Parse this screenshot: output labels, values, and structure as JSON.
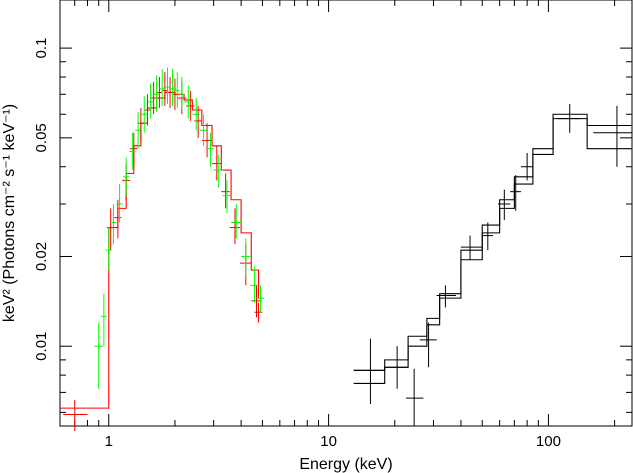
{
  "chart_data": {
    "type": "scatter",
    "title": "",
    "xlabel": "Energy (keV)",
    "ylabel": "keV² (Photons cm⁻² s⁻¹ keV⁻¹)",
    "xscale": "log",
    "yscale": "log",
    "xlim": [
      0.6,
      240
    ],
    "ylim": [
      0.0054,
      0.145
    ],
    "grid": false,
    "legend": "none",
    "x_ticks": [
      {
        "value": 1,
        "label": "1"
      },
      {
        "value": 10,
        "label": "10"
      },
      {
        "value": 100,
        "label": "100"
      }
    ],
    "y_ticks": [
      {
        "value": 0.01,
        "label": "0.01"
      },
      {
        "value": 0.02,
        "label": "0.02"
      },
      {
        "value": 0.05,
        "label": "0.05"
      },
      {
        "value": 0.1,
        "label": "0.1"
      }
    ],
    "series": [
      {
        "color": "#ff0000",
        "style": "errorbar",
        "points": [
          {
            "x": 0.7,
            "y": 0.0059,
            "xerr": [
              0.62,
              0.8
            ],
            "yerr": [
              0.0052,
              0.0066
            ]
          },
          {
            "x": 1.02,
            "y": 0.025,
            "xerr": [
              0.98,
              1.06
            ],
            "yerr": [
              0.021,
              0.029
            ]
          },
          {
            "x": 1.1,
            "y": 0.027,
            "xerr": [
              1.06,
              1.14
            ],
            "yerr": [
              0.023,
              0.031
            ]
          },
          {
            "x": 1.2,
            "y": 0.036,
            "xerr": [
              1.15,
              1.25
            ],
            "yerr": [
              0.031,
              0.041
            ]
          },
          {
            "x": 1.3,
            "y": 0.046,
            "xerr": [
              1.25,
              1.35
            ],
            "yerr": [
              0.04,
              0.052
            ]
          },
          {
            "x": 1.4,
            "y": 0.056,
            "xerr": [
              1.35,
              1.45
            ],
            "yerr": [
              0.049,
              0.063
            ]
          },
          {
            "x": 1.5,
            "y": 0.062,
            "xerr": [
              1.45,
              1.55
            ],
            "yerr": [
              0.055,
              0.07
            ]
          },
          {
            "x": 1.6,
            "y": 0.068,
            "xerr": [
              1.55,
              1.65
            ],
            "yerr": [
              0.06,
              0.077
            ]
          },
          {
            "x": 1.7,
            "y": 0.071,
            "xerr": [
              1.65,
              1.75
            ],
            "yerr": [
              0.063,
              0.08
            ]
          },
          {
            "x": 1.8,
            "y": 0.072,
            "xerr": [
              1.75,
              1.85
            ],
            "yerr": [
              0.064,
              0.083
            ]
          },
          {
            "x": 1.9,
            "y": 0.071,
            "xerr": [
              1.85,
              1.95
            ],
            "yerr": [
              0.063,
              0.08
            ]
          },
          {
            "x": 2.0,
            "y": 0.07,
            "xerr": [
              1.95,
              2.05
            ],
            "yerr": [
              0.062,
              0.079
            ]
          },
          {
            "x": 2.15,
            "y": 0.068,
            "xerr": [
              2.05,
              2.25
            ],
            "yerr": [
              0.06,
              0.077
            ]
          },
          {
            "x": 2.35,
            "y": 0.064,
            "xerr": [
              2.25,
              2.45
            ],
            "yerr": [
              0.057,
              0.072
            ]
          },
          {
            "x": 2.55,
            "y": 0.057,
            "xerr": [
              2.45,
              2.65
            ],
            "yerr": [
              0.05,
              0.064
            ]
          },
          {
            "x": 2.8,
            "y": 0.049,
            "xerr": [
              2.65,
              2.95
            ],
            "yerr": [
              0.043,
              0.056
            ]
          },
          {
            "x": 3.1,
            "y": 0.041,
            "xerr": [
              2.95,
              3.25
            ],
            "yerr": [
              0.036,
              0.047
            ]
          },
          {
            "x": 3.4,
            "y": 0.033,
            "xerr": [
              3.25,
              3.55
            ],
            "yerr": [
              0.029,
              0.038
            ]
          },
          {
            "x": 3.75,
            "y": 0.025,
            "xerr": [
              3.55,
              3.95
            ],
            "yerr": [
              0.022,
              0.029
            ]
          },
          {
            "x": 4.2,
            "y": 0.019,
            "xerr": [
              3.95,
              4.45
            ],
            "yerr": [
              0.016,
              0.022
            ]
          },
          {
            "x": 4.7,
            "y": 0.0142,
            "xerr": [
              4.45,
              4.95
            ],
            "yerr": [
              0.0125,
              0.016
            ]
          },
          {
            "x": 4.8,
            "y": 0.013,
            "xerr": [
              4.6,
              5.0
            ],
            "yerr": [
              0.012,
              0.014
            ]
          }
        ]
      },
      {
        "color": "#ff0000",
        "style": "step",
        "points": [
          {
            "x": 0.6,
            "y": 0.0062
          },
          {
            "x": 1.0,
            "y": 0.0062
          },
          {
            "x": 1.0,
            "y": 0.025
          },
          {
            "x": 1.1,
            "y": 0.029
          },
          {
            "x": 1.2,
            "y": 0.038
          },
          {
            "x": 1.3,
            "y": 0.047
          },
          {
            "x": 1.4,
            "y": 0.056
          },
          {
            "x": 1.5,
            "y": 0.063
          },
          {
            "x": 1.65,
            "y": 0.068
          },
          {
            "x": 1.8,
            "y": 0.071
          },
          {
            "x": 2.0,
            "y": 0.07
          },
          {
            "x": 2.2,
            "y": 0.067
          },
          {
            "x": 2.4,
            "y": 0.062
          },
          {
            "x": 2.65,
            "y": 0.055
          },
          {
            "x": 2.95,
            "y": 0.047
          },
          {
            "x": 3.25,
            "y": 0.039
          },
          {
            "x": 3.6,
            "y": 0.031
          },
          {
            "x": 4.0,
            "y": 0.024
          },
          {
            "x": 4.45,
            "y": 0.018
          },
          {
            "x": 4.8,
            "y": 0.0145
          },
          {
            "x": 5.0,
            "y": 0.0145
          }
        ]
      },
      {
        "color": "#00ff00",
        "style": "errorbar",
        "points": [
          {
            "x": 0.9,
            "y": 0.01,
            "xerr": [
              0.86,
              0.94
            ],
            "yerr": [
              0.0072,
              0.012
            ]
          },
          {
            "x": 0.95,
            "y": 0.0126,
            "xerr": [
              0.92,
              0.98
            ],
            "yerr": [
              0.01,
              0.015
            ]
          },
          {
            "x": 1.0,
            "y": 0.021,
            "xerr": [
              0.97,
              1.03
            ],
            "yerr": [
              0.018,
              0.025
            ]
          },
          {
            "x": 1.05,
            "y": 0.026,
            "xerr": [
              1.02,
              1.08
            ],
            "yerr": [
              0.022,
              0.03
            ]
          },
          {
            "x": 1.12,
            "y": 0.03,
            "xerr": [
              1.08,
              1.16
            ],
            "yerr": [
              0.026,
              0.035
            ]
          },
          {
            "x": 1.2,
            "y": 0.037,
            "xerr": [
              1.16,
              1.24
            ],
            "yerr": [
              0.032,
              0.043
            ]
          },
          {
            "x": 1.28,
            "y": 0.045,
            "xerr": [
              1.24,
              1.32
            ],
            "yerr": [
              0.039,
              0.052
            ]
          },
          {
            "x": 1.36,
            "y": 0.053,
            "xerr": [
              1.32,
              1.4
            ],
            "yerr": [
              0.046,
              0.061
            ]
          },
          {
            "x": 1.45,
            "y": 0.06,
            "xerr": [
              1.4,
              1.5
            ],
            "yerr": [
              0.052,
              0.069
            ]
          },
          {
            "x": 1.55,
            "y": 0.066,
            "xerr": [
              1.5,
              1.6
            ],
            "yerr": [
              0.058,
              0.076
            ]
          },
          {
            "x": 1.65,
            "y": 0.07,
            "xerr": [
              1.6,
              1.7
            ],
            "yerr": [
              0.061,
              0.081
            ]
          },
          {
            "x": 1.75,
            "y": 0.073,
            "xerr": [
              1.7,
              1.8
            ],
            "yerr": [
              0.064,
              0.085
            ]
          },
          {
            "x": 1.85,
            "y": 0.074,
            "xerr": [
              1.8,
              1.9
            ],
            "yerr": [
              0.065,
              0.086
            ]
          },
          {
            "x": 1.95,
            "y": 0.073,
            "xerr": [
              1.9,
              2.0
            ],
            "yerr": [
              0.064,
              0.085
            ]
          },
          {
            "x": 2.05,
            "y": 0.072,
            "xerr": [
              2.0,
              2.1
            ],
            "yerr": [
              0.063,
              0.083
            ]
          },
          {
            "x": 2.15,
            "y": 0.07,
            "xerr": [
              2.1,
              2.2
            ],
            "yerr": [
              0.062,
              0.08
            ]
          },
          {
            "x": 2.3,
            "y": 0.066,
            "xerr": [
              2.2,
              2.4
            ],
            "yerr": [
              0.058,
              0.075
            ]
          },
          {
            "x": 2.5,
            "y": 0.06,
            "xerr": [
              2.4,
              2.6
            ],
            "yerr": [
              0.053,
              0.068
            ]
          },
          {
            "x": 2.7,
            "y": 0.053,
            "xerr": [
              2.6,
              2.8
            ],
            "yerr": [
              0.047,
              0.06
            ]
          },
          {
            "x": 2.9,
            "y": 0.046,
            "xerr": [
              2.8,
              3.0
            ],
            "yerr": [
              0.04,
              0.052
            ]
          },
          {
            "x": 3.15,
            "y": 0.039,
            "xerr": [
              3.0,
              3.3
            ],
            "yerr": [
              0.034,
              0.044
            ]
          },
          {
            "x": 3.45,
            "y": 0.032,
            "xerr": [
              3.3,
              3.6
            ],
            "yerr": [
              0.028,
              0.036
            ]
          },
          {
            "x": 3.8,
            "y": 0.026,
            "xerr": [
              3.6,
              4.0
            ],
            "yerr": [
              0.023,
              0.03
            ]
          },
          {
            "x": 4.2,
            "y": 0.02,
            "xerr": [
              4.0,
              4.4
            ],
            "yerr": [
              0.017,
              0.023
            ]
          },
          {
            "x": 4.6,
            "y": 0.016,
            "xerr": [
              4.4,
              4.8
            ],
            "yerr": [
              0.014,
              0.0185
            ]
          },
          {
            "x": 4.9,
            "y": 0.0145,
            "xerr": [
              4.75,
              5.1
            ],
            "yerr": [
              0.013,
              0.016
            ]
          }
        ]
      },
      {
        "color": "#000000",
        "style": "errorbar",
        "points": [
          {
            "x": 15.5,
            "y": 0.0083,
            "xerr": [
              13.0,
              18.0
            ],
            "yerr": [
              0.0064,
              0.0106
            ]
          },
          {
            "x": 20.5,
            "y": 0.0085,
            "xerr": [
              18.0,
              23.0
            ],
            "yerr": [
              0.0072,
              0.01
            ]
          },
          {
            "x": 24.5,
            "y": 0.0067,
            "xerr": [
              22.5,
              27.0
            ],
            "yerr": [
              0.0054,
              0.0084
            ]
          },
          {
            "x": 28.5,
            "y": 0.0105,
            "xerr": [
              26.0,
              31.0
            ],
            "yerr": [
              0.0085,
              0.012
            ]
          },
          {
            "x": 34.0,
            "y": 0.0148,
            "xerr": [
              31.0,
              38.0
            ],
            "yerr": [
              0.0135,
              0.016
            ]
          },
          {
            "x": 44.0,
            "y": 0.0215,
            "xerr": [
              40.0,
              50.0
            ],
            "yerr": [
              0.0195,
              0.0235
            ]
          },
          {
            "x": 53.0,
            "y": 0.0235,
            "xerr": [
              50.0,
              56.0
            ],
            "yerr": [
              0.021,
              0.026
            ]
          },
          {
            "x": 63.0,
            "y": 0.03,
            "xerr": [
              59.0,
              67.0
            ],
            "yerr": [
              0.0265,
              0.0335
            ]
          },
          {
            "x": 71.0,
            "y": 0.033,
            "xerr": [
              67.0,
              75.0
            ],
            "yerr": [
              0.0285,
              0.0375
            ]
          },
          {
            "x": 80.0,
            "y": 0.04,
            "xerr": [
              75.0,
              85.0
            ],
            "yerr": [
              0.036,
              0.0445
            ]
          },
          {
            "x": 125.0,
            "y": 0.058,
            "xerr": [
              110.0,
              140.0
            ],
            "yerr": [
              0.052,
              0.065
            ]
          },
          {
            "x": 205.0,
            "y": 0.052,
            "xerr": [
              160.0,
              240.0
            ],
            "yerr": [
              0.04,
              0.064
            ]
          }
        ]
      },
      {
        "color": "#000000",
        "style": "step",
        "points": [
          {
            "x": 13.0,
            "y": 0.0075
          },
          {
            "x": 18.0,
            "y": 0.0085
          },
          {
            "x": 23.0,
            "y": 0.01
          },
          {
            "x": 28.0,
            "y": 0.0118
          },
          {
            "x": 32.0,
            "y": 0.0145
          },
          {
            "x": 40.0,
            "y": 0.0195
          },
          {
            "x": 50.0,
            "y": 0.024
          },
          {
            "x": 60.0,
            "y": 0.029
          },
          {
            "x": 70.0,
            "y": 0.035
          },
          {
            "x": 85.0,
            "y": 0.044
          },
          {
            "x": 105.0,
            "y": 0.058
          },
          {
            "x": 150.0,
            "y": 0.055
          },
          {
            "x": 240.0,
            "y": 0.055
          }
        ]
      },
      {
        "color": "#000000",
        "style": "step",
        "points": [
          {
            "x": 13.0,
            "y": 0.0083
          },
          {
            "x": 18.0,
            "y": 0.009
          },
          {
            "x": 23.0,
            "y": 0.0108
          },
          {
            "x": 28.0,
            "y": 0.0124
          },
          {
            "x": 32.0,
            "y": 0.015
          },
          {
            "x": 40.0,
            "y": 0.021
          },
          {
            "x": 50.0,
            "y": 0.0255
          },
          {
            "x": 60.0,
            "y": 0.031
          },
          {
            "x": 70.0,
            "y": 0.037
          },
          {
            "x": 85.0,
            "y": 0.046
          },
          {
            "x": 105.0,
            "y": 0.06
          },
          {
            "x": 150.0,
            "y": 0.046
          },
          {
            "x": 240.0,
            "y": 0.046
          }
        ]
      }
    ]
  }
}
